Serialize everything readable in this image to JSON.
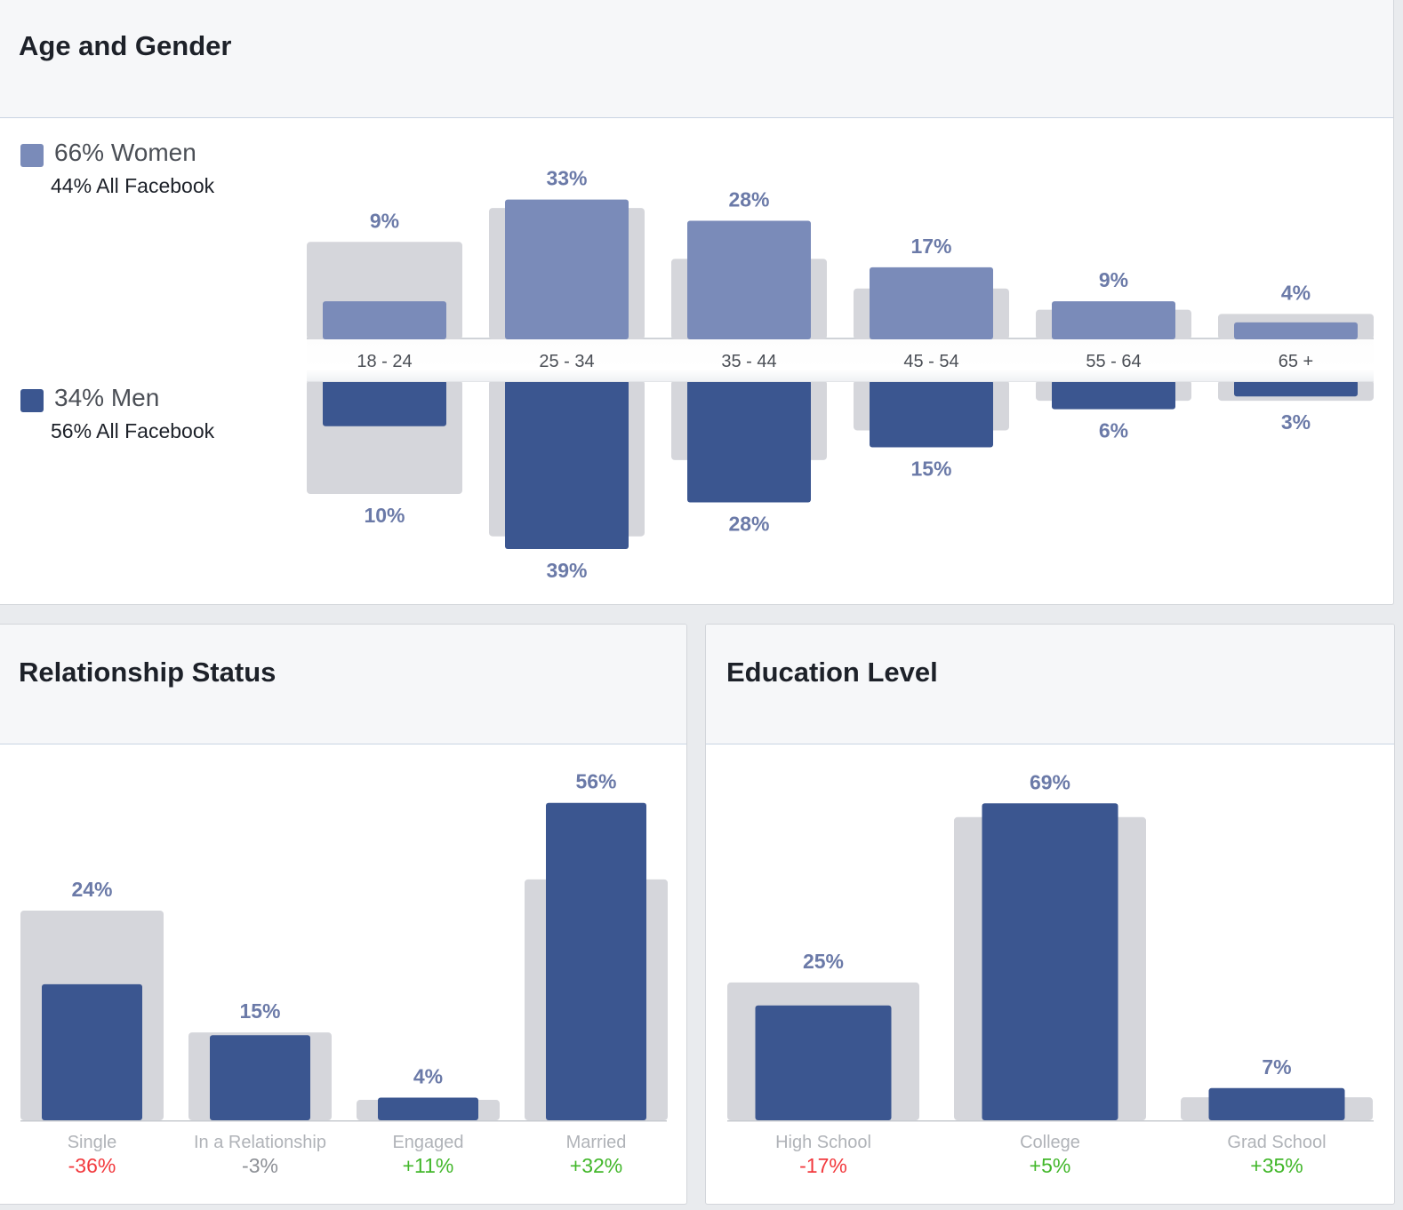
{
  "age_gender": {
    "title": "Age and Gender",
    "women_label": "66% Women",
    "women_sub": "44% All Facebook",
    "men_label": "34% Men",
    "men_sub": "56% All Facebook"
  },
  "relationship": {
    "title": "Relationship Status"
  },
  "education": {
    "title": "Education Level"
  },
  "colors": {
    "women": "#7a8bb9",
    "men": "#3b5690",
    "baseline": "#d5d6db",
    "label": "#6b7aa8",
    "axis_text": "#b0b3b8",
    "negative": "#f2393d",
    "neutral": "#8d9096",
    "positive": "#42b72a"
  },
  "chart_data": [
    {
      "type": "bar",
      "title": "Age and Gender",
      "categories": [
        "18 - 24",
        "25 - 34",
        "35 - 44",
        "45 - 54",
        "55 - 64",
        "65 +"
      ],
      "series": [
        {
          "name": "Women",
          "values": [
            9,
            33,
            28,
            17,
            9,
            4
          ],
          "labels": [
            "9%",
            "33%",
            "28%",
            "17%",
            "9%",
            "4%"
          ]
        },
        {
          "name": "Men",
          "values": [
            10,
            39,
            28,
            15,
            6,
            3
          ],
          "labels": [
            "10%",
            "39%",
            "28%",
            "15%",
            "6%",
            "3%"
          ]
        }
      ],
      "baseline_women": [
        23,
        31,
        19,
        12,
        7,
        6
      ],
      "baseline_men": [
        26,
        36,
        18,
        11,
        4,
        4
      ]
    },
    {
      "type": "bar",
      "title": "Relationship Status",
      "categories": [
        "Single",
        "In a Relationship",
        "Engaged",
        "Married"
      ],
      "values": [
        24,
        15,
        4,
        56
      ],
      "labels": [
        "24%",
        "15%",
        "4%",
        "56%"
      ],
      "baseline": [
        37,
        15.5,
        3.6,
        42.5
      ],
      "diffs": [
        "-36%",
        "-3%",
        "+11%",
        "+32%"
      ]
    },
    {
      "type": "bar",
      "title": "Education Level",
      "categories": [
        "High School",
        "College",
        "Grad School"
      ],
      "values": [
        25,
        69,
        7
      ],
      "labels": [
        "25%",
        "69%",
        "7%"
      ],
      "baseline": [
        30,
        66,
        5
      ],
      "diffs": [
        "-17%",
        "+5%",
        "+35%"
      ]
    }
  ]
}
